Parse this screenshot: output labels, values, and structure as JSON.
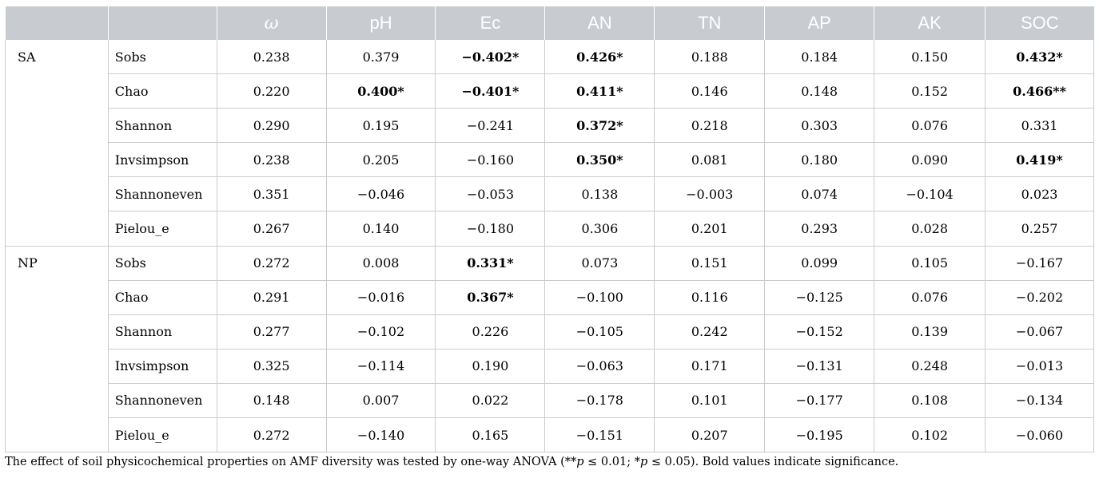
{
  "table": {
    "headers": [
      "",
      "",
      "ω",
      "pH",
      "Ec",
      "AN",
      "TN",
      "AP",
      "AK",
      "SOC"
    ],
    "groups": [
      {
        "label": "SA",
        "rows": [
          {
            "metric": "Sobs",
            "values": [
              "0.238",
              "0.379",
              "−0.402*",
              "0.426*",
              "0.188",
              "0.184",
              "0.150",
              "0.432*"
            ],
            "bold": [
              false,
              false,
              true,
              true,
              false,
              false,
              false,
              true
            ]
          },
          {
            "metric": "Chao",
            "values": [
              "0.220",
              "0.400*",
              "−0.401*",
              "0.411*",
              "0.146",
              "0.148",
              "0.152",
              "0.466**"
            ],
            "bold": [
              false,
              true,
              true,
              true,
              false,
              false,
              false,
              true
            ]
          },
          {
            "metric": "Shannon",
            "values": [
              "0.290",
              "0.195",
              "−0.241",
              "0.372*",
              "0.218",
              "0.303",
              "0.076",
              "0.331"
            ],
            "bold": [
              false,
              false,
              false,
              true,
              false,
              false,
              false,
              false
            ]
          },
          {
            "metric": "Invsimpson",
            "values": [
              "0.238",
              "0.205",
              "−0.160",
              "0.350*",
              "0.081",
              "0.180",
              "0.090",
              "0.419*"
            ],
            "bold": [
              false,
              false,
              false,
              true,
              false,
              false,
              false,
              true
            ]
          },
          {
            "metric": "Shannoneven",
            "values": [
              "0.351",
              "−0.046",
              "−0.053",
              "0.138",
              "−0.003",
              "0.074",
              "−0.104",
              "0.023"
            ],
            "bold": [
              false,
              false,
              false,
              false,
              false,
              false,
              false,
              false
            ]
          },
          {
            "metric": "Pielou_e",
            "values": [
              "0.267",
              "0.140",
              "−0.180",
              "0.306",
              "0.201",
              "0.293",
              "0.028",
              "0.257"
            ],
            "bold": [
              false,
              false,
              false,
              false,
              false,
              false,
              false,
              false
            ]
          }
        ]
      },
      {
        "label": "NP",
        "rows": [
          {
            "metric": "Sobs",
            "values": [
              "0.272",
              "0.008",
              "0.331*",
              "0.073",
              "0.151",
              "0.099",
              "0.105",
              "−0.167"
            ],
            "bold": [
              false,
              false,
              true,
              false,
              false,
              false,
              false,
              false
            ]
          },
          {
            "metric": "Chao",
            "values": [
              "0.291",
              "−0.016",
              "0.367*",
              "−0.100",
              "0.116",
              "−0.125",
              "0.076",
              "−0.202"
            ],
            "bold": [
              false,
              false,
              true,
              false,
              false,
              false,
              false,
              false
            ]
          },
          {
            "metric": "Shannon",
            "values": [
              "0.277",
              "−0.102",
              "0.226",
              "−0.105",
              "0.242",
              "−0.152",
              "0.139",
              "−0.067"
            ],
            "bold": [
              false,
              false,
              false,
              false,
              false,
              false,
              false,
              false
            ]
          },
          {
            "metric": "Invsimpson",
            "values": [
              "0.325",
              "−0.114",
              "0.190",
              "−0.063",
              "0.171",
              "−0.131",
              "0.248",
              "−0.013"
            ],
            "bold": [
              false,
              false,
              false,
              false,
              false,
              false,
              false,
              false
            ]
          },
          {
            "metric": "Shannoneven",
            "values": [
              "0.148",
              "0.007",
              "0.022",
              "−0.178",
              "0.101",
              "−0.177",
              "0.108",
              "−0.134"
            ],
            "bold": [
              false,
              false,
              false,
              false,
              false,
              false,
              false,
              false
            ]
          },
          {
            "metric": "Pielou_e",
            "values": [
              "0.272",
              "−0.140",
              "0.165",
              "−0.151",
              "0.207",
              "−0.195",
              "0.102",
              "−0.060"
            ],
            "bold": [
              false,
              false,
              false,
              false,
              false,
              false,
              false,
              false
            ]
          }
        ]
      }
    ]
  },
  "footnote": {
    "text_a": "The effect of soil physicochemical properties on AMF diversity was tested by one-way ANOVA (**",
    "p1": "p",
    "text_b": " ≤ 0.01; *",
    "p2": "p",
    "text_c": " ≤ 0.05). Bold values indicate significance."
  },
  "colors": {
    "header_bg": "#c8ccd1",
    "header_text": "#ffffff",
    "rule": "#c8ccd1"
  }
}
